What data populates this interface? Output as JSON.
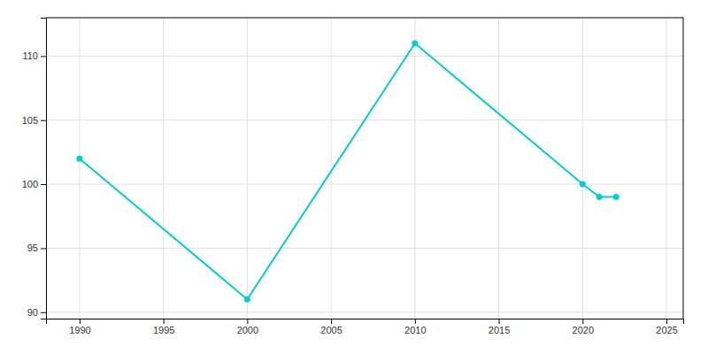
{
  "chart_data": {
    "type": "line",
    "x": [
      1990,
      2000,
      2010,
      2020,
      2021,
      2022
    ],
    "values": [
      102,
      91,
      111,
      100,
      99,
      99
    ],
    "color": "#00CED1",
    "marker": "circle",
    "xlim": [
      1988,
      2026
    ],
    "ylim": [
      89.5,
      113
    ],
    "xticks": [
      1990,
      1995,
      2000,
      2005,
      2010,
      2015,
      2020,
      2025
    ],
    "yticks": [
      90,
      95,
      100,
      105,
      110
    ],
    "grid": true
  }
}
